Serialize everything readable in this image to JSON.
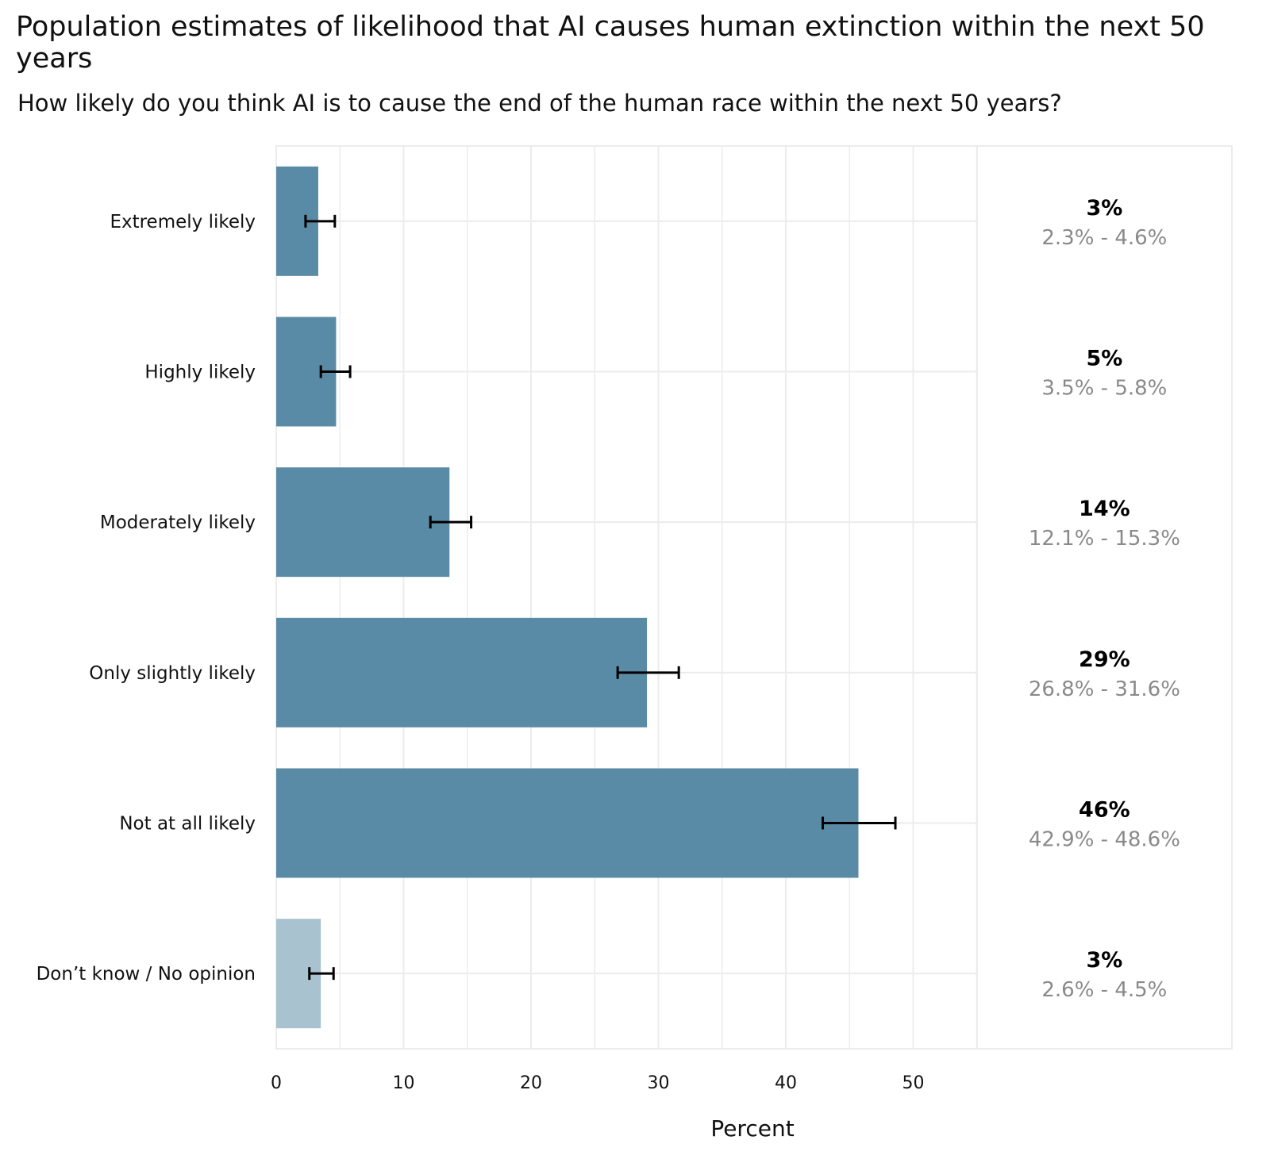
{
  "title": "Population estimates of likelihood that AI causes human extinction within the next 50 years",
  "subtitle": "How likely do you think AI is to cause the end of the human race within the next 50 years?",
  "colors": {
    "bar_main": "#5a8ba6",
    "bar_dont_know": "#a9c2cf",
    "gridline": "#ececec",
    "error_bar": "#000000",
    "ci_text": "#8a8a8a"
  },
  "chart_data": {
    "type": "bar",
    "orientation": "horizontal",
    "title": "Population estimates of likelihood that AI causes human extinction within the next 50 years",
    "subtitle": "How likely do you think AI is to cause the end of the human race within the next 50 years?",
    "xlabel": "Percent",
    "ylabel": "",
    "xlim": [
      0,
      55
    ],
    "xticks": [
      0,
      10,
      20,
      30,
      40,
      50
    ],
    "grid": true,
    "categories": [
      "Extremely likely",
      "Highly likely",
      "Moderately likely",
      "Only slightly likely",
      "Not at all likely",
      "Don't know / No opinion"
    ],
    "display_categories": [
      "Extremely likely",
      "Highly likely",
      "Moderately likely",
      "Only slightly likely",
      "Not at all likely",
      "Don’t know / No opinion"
    ],
    "values": [
      3.3,
      4.7,
      13.6,
      29.1,
      45.7,
      3.5
    ],
    "ci_low": [
      2.3,
      3.5,
      12.1,
      26.8,
      42.9,
      2.6
    ],
    "ci_high": [
      4.6,
      5.8,
      15.3,
      31.6,
      48.6,
      4.5
    ],
    "labels": [
      "3%",
      "5%",
      "14%",
      "29%",
      "46%",
      "3%"
    ],
    "ci_labels": [
      "2.3% - 4.6%",
      "3.5% - 5.8%",
      "12.1% - 15.3%",
      "26.8% - 31.6%",
      "42.9% - 48.6%",
      "2.6% - 4.5%"
    ],
    "highlight": [
      true,
      true,
      true,
      true,
      true,
      false
    ]
  }
}
